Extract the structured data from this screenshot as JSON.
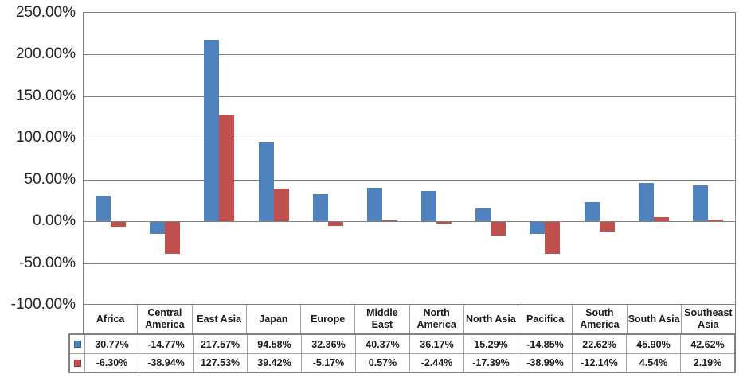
{
  "chart_data": {
    "type": "bar",
    "title": "",
    "categories": [
      "Africa",
      "Central America",
      "East Asia",
      "Japan",
      "Europe",
      "Middle East",
      "North America",
      "North Asia",
      "Pacifica",
      "South America",
      "South Asia",
      "Southeast Asia"
    ],
    "series": [
      {
        "name": "blue-series",
        "color": "#4F81BD",
        "swatch_border": "#385D8A",
        "values": [
          30.77,
          -14.77,
          217.57,
          94.58,
          32.36,
          40.37,
          36.17,
          15.29,
          -14.85,
          22.62,
          45.9,
          42.62
        ],
        "labels": [
          "30.77%",
          "-14.77%",
          "217.57%",
          "94.58%",
          "32.36%",
          "40.37%",
          "36.17%",
          "15.29%",
          "-14.85%",
          "22.62%",
          "45.90%",
          "42.62%"
        ]
      },
      {
        "name": "red-series",
        "color": "#C0504D",
        "swatch_border": "#953735",
        "values": [
          -6.3,
          -38.94,
          127.53,
          39.42,
          -5.17,
          0.57,
          -2.44,
          -17.39,
          -38.99,
          -12.14,
          4.54,
          2.19
        ],
        "labels": [
          "-6.30%",
          "-38.94%",
          "127.53%",
          "39.42%",
          "-5.17%",
          "0.57%",
          "-2.44%",
          "-17.39%",
          "-38.99%",
          "-12.14%",
          "4.54%",
          "2.19%"
        ]
      }
    ],
    "ylim": [
      -100,
      250
    ],
    "ytick_step": 50,
    "ytick_labels": [
      "250.00%",
      "200.00%",
      "150.00%",
      "100.00%",
      "50.00%",
      "0.00%",
      "-50.00%",
      "-100.00%"
    ],
    "ytick_values": [
      250,
      200,
      150,
      100,
      50,
      0,
      -50,
      -100
    ],
    "grid": true,
    "legend_position": "data-table-left-swatches",
    "gridline_color": "#808080",
    "axis_text_color": "#262626"
  }
}
